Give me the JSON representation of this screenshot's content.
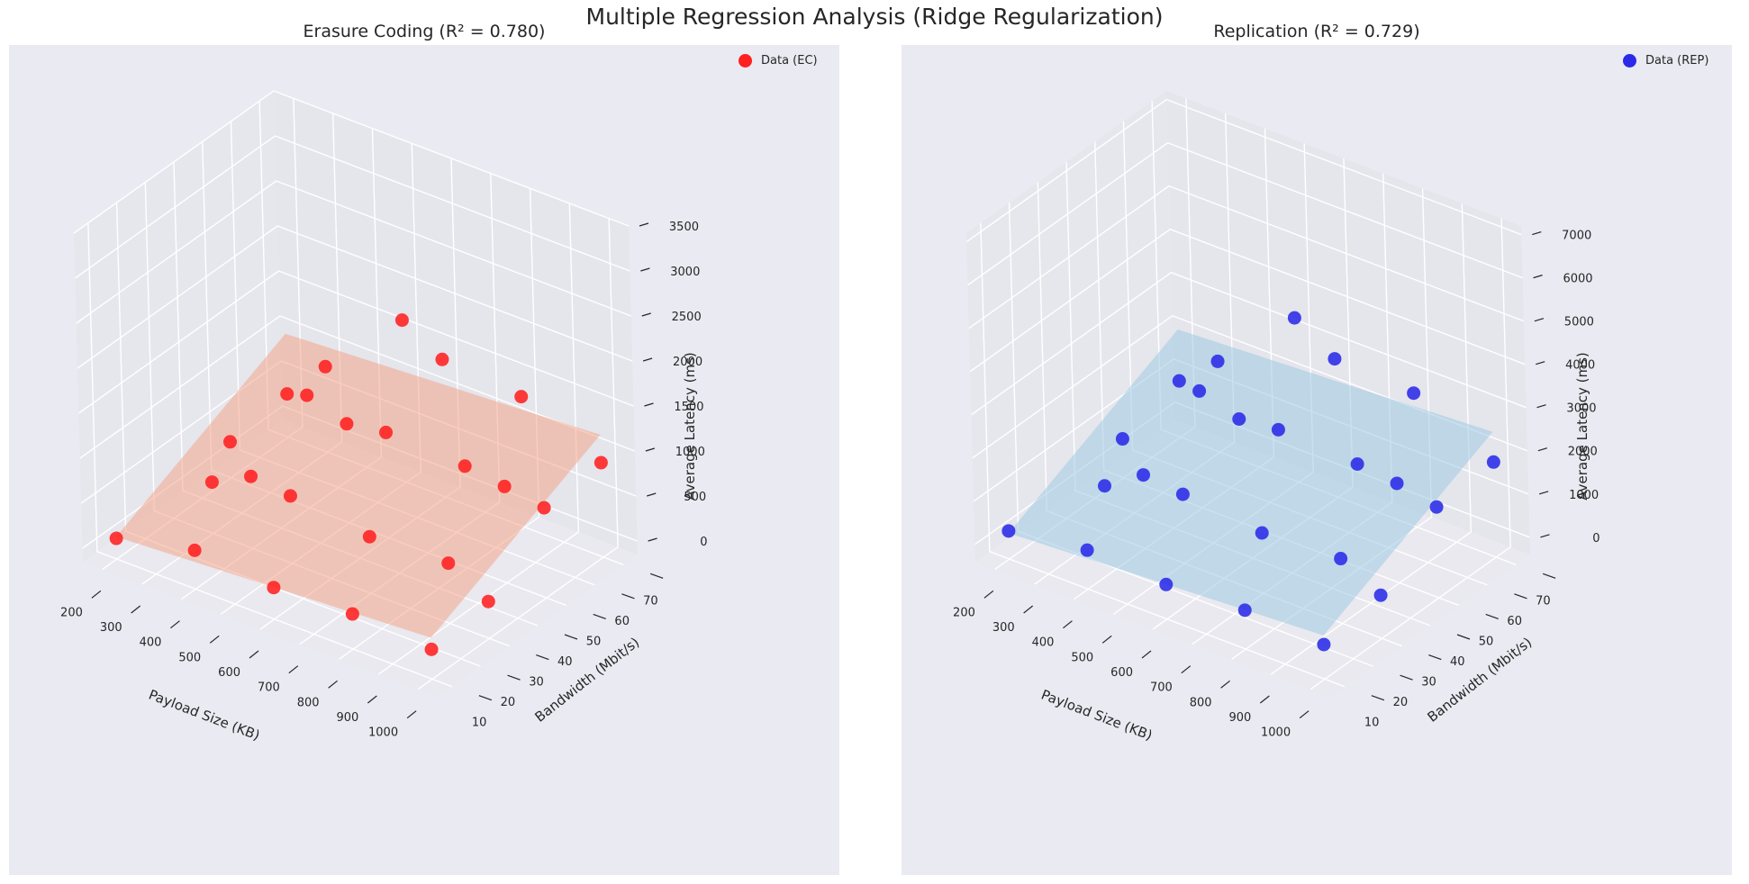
{
  "suptitle": "Multiple Regression Analysis (Ridge Regularization)",
  "chart_data": [
    {
      "type": "scatter",
      "title": "Erasure Coding (R² = 0.780)",
      "xlabel": "Payload Size (KB)",
      "ylabel": "Bandwidth (Mbit/s)",
      "zlabel": "Average Latency (ms)",
      "xticks": [
        "200",
        "300",
        "400",
        "500",
        "600",
        "700",
        "800",
        "900",
        "1000"
      ],
      "yticks": [
        "10",
        "20",
        "30",
        "40",
        "50",
        "60",
        "70"
      ],
      "zticks": [
        "0",
        "500",
        "1000",
        "1500",
        "2000",
        "2500",
        "3000",
        "3500"
      ],
      "xlim": [
        150,
        1050
      ],
      "ylim": [
        5,
        75
      ],
      "zlim": [
        -150,
        3500
      ],
      "legend": "Data (EC)",
      "legend_position": "top-right",
      "point_color": "#ff2020",
      "surface_color": "#f4a58a",
      "grid": true,
      "points": [
        {
          "x": 200,
          "y": 10,
          "z": 80
        },
        {
          "x": 200,
          "y": 50,
          "z": 250
        },
        {
          "x": 200,
          "y": 70,
          "z": 330
        },
        {
          "x": 300,
          "y": 30,
          "z": 420
        },
        {
          "x": 300,
          "y": 70,
          "z": 800
        },
        {
          "x": 400,
          "y": 10,
          "z": 280
        },
        {
          "x": 400,
          "y": 30,
          "z": 650
        },
        {
          "x": 400,
          "y": 50,
          "z": 1100
        },
        {
          "x": 500,
          "y": 30,
          "z": 600
        },
        {
          "x": 500,
          "y": 50,
          "z": 950
        },
        {
          "x": 500,
          "y": 70,
          "z": 1650
        },
        {
          "x": 600,
          "y": 10,
          "z": 200
        },
        {
          "x": 600,
          "y": 50,
          "z": 1020
        },
        {
          "x": 600,
          "y": 70,
          "z": 1380
        },
        {
          "x": 700,
          "y": 30,
          "z": 480
        },
        {
          "x": 800,
          "y": 10,
          "z": 240
        },
        {
          "x": 800,
          "y": 50,
          "z": 980
        },
        {
          "x": 800,
          "y": 70,
          "z": 1300
        },
        {
          "x": 900,
          "y": 30,
          "z": 520
        },
        {
          "x": 900,
          "y": 50,
          "z": 920
        },
        {
          "x": 1000,
          "y": 10,
          "z": 180
        },
        {
          "x": 1000,
          "y": 30,
          "z": 260
        },
        {
          "x": 1000,
          "y": 50,
          "z": 850
        },
        {
          "x": 1000,
          "y": 70,
          "z": 900
        }
      ]
    },
    {
      "type": "scatter",
      "title": "Replication (R² = 0.729)",
      "xlabel": "Payload Size (KB)",
      "ylabel": "Bandwidth (Mbit/s)",
      "zlabel": "Average Latency (ms)",
      "xticks": [
        "200",
        "300",
        "400",
        "500",
        "600",
        "700",
        "800",
        "900",
        "1000"
      ],
      "yticks": [
        "10",
        "20",
        "30",
        "40",
        "50",
        "60",
        "70"
      ],
      "zticks": [
        "0",
        "1000",
        "2000",
        "3000",
        "4000",
        "5000",
        "6000",
        "7000"
      ],
      "xlim": [
        150,
        1050
      ],
      "ylim": [
        5,
        75
      ],
      "zlim": [
        -400,
        7200
      ],
      "legend": "Data (REP)",
      "legend_position": "top-right",
      "point_color": "#2a2ae8",
      "surface_color": "#9ecae1",
      "grid": true,
      "points": [
        {
          "x": 200,
          "y": 10,
          "z": 250
        },
        {
          "x": 200,
          "y": 50,
          "z": 500
        },
        {
          "x": 200,
          "y": 70,
          "z": 900
        },
        {
          "x": 300,
          "y": 30,
          "z": 700
        },
        {
          "x": 300,
          "y": 70,
          "z": 1700
        },
        {
          "x": 400,
          "y": 10,
          "z": 500
        },
        {
          "x": 400,
          "y": 30,
          "z": 1300
        },
        {
          "x": 400,
          "y": 50,
          "z": 2300
        },
        {
          "x": 500,
          "y": 30,
          "z": 1200
        },
        {
          "x": 500,
          "y": 50,
          "z": 2000
        },
        {
          "x": 500,
          "y": 70,
          "z": 3400
        },
        {
          "x": 600,
          "y": 10,
          "z": 400
        },
        {
          "x": 600,
          "y": 50,
          "z": 2100
        },
        {
          "x": 600,
          "y": 70,
          "z": 2800
        },
        {
          "x": 700,
          "y": 30,
          "z": 1000
        },
        {
          "x": 800,
          "y": 10,
          "z": 500
        },
        {
          "x": 800,
          "y": 50,
          "z": 2000
        },
        {
          "x": 800,
          "y": 70,
          "z": 2700
        },
        {
          "x": 900,
          "y": 30,
          "z": 1100
        },
        {
          "x": 900,
          "y": 50,
          "z": 1900
        },
        {
          "x": 1000,
          "y": 10,
          "z": 400
        },
        {
          "x": 1000,
          "y": 30,
          "z": 600
        },
        {
          "x": 1000,
          "y": 50,
          "z": 1700
        },
        {
          "x": 1000,
          "y": 70,
          "z": 1800
        }
      ]
    }
  ]
}
